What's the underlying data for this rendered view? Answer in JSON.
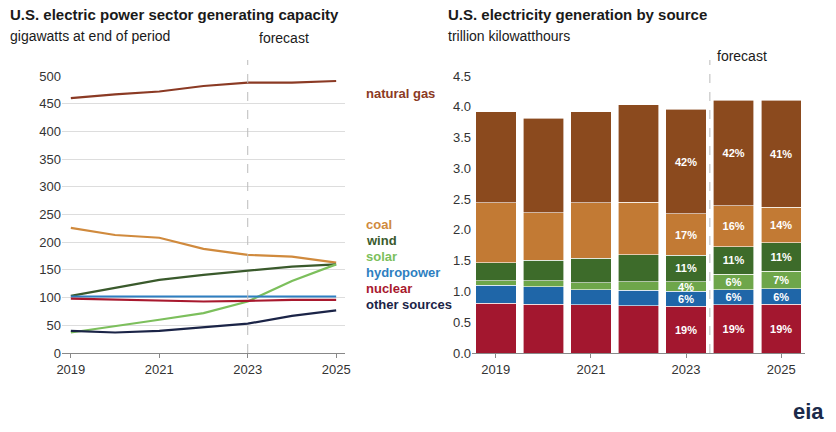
{
  "chart_data": [
    {
      "type": "line",
      "title": "U.S. electric power sector generating capacity",
      "subtitle": "gigawatts at end of period",
      "annotations": [
        {
          "text": "forecast",
          "x": 2023
        }
      ],
      "x": [
        2019,
        2020,
        2021,
        2022,
        2023,
        2024,
        2025
      ],
      "xlim": [
        2018.8,
        2025.2
      ],
      "xticks": [
        2019,
        2021,
        2023,
        2025
      ],
      "ylim": [
        0,
        500
      ],
      "yticks": [
        0,
        50,
        100,
        150,
        200,
        250,
        300,
        350,
        400,
        450,
        500
      ],
      "grid": true,
      "series": [
        {
          "name": "natural gas",
          "color": "#8b3a24",
          "values": [
            460,
            467,
            472,
            482,
            488,
            488,
            491
          ]
        },
        {
          "name": "coal",
          "color": "#d08a3d",
          "values": [
            226,
            213,
            208,
            188,
            177,
            174,
            163
          ]
        },
        {
          "name": "wind",
          "color": "#3a5a2c",
          "values": [
            103,
            118,
            132,
            141,
            148,
            156,
            160
          ]
        },
        {
          "name": "solar",
          "color": "#7cbf5c",
          "values": [
            37,
            48,
            60,
            72,
            93,
            130,
            160
          ]
        },
        {
          "name": "hydropower",
          "color": "#2e7fc1",
          "values": [
            102,
            102,
            102,
            102,
            102,
            102,
            102
          ]
        },
        {
          "name": "nuclear",
          "color": "#a8192e",
          "values": [
            98,
            96,
            95,
            93,
            94,
            96,
            96
          ]
        },
        {
          "name": "other sources",
          "color": "#1b2447",
          "values": [
            40,
            37,
            40,
            47,
            53,
            67,
            77
          ]
        }
      ]
    },
    {
      "type": "bar",
      "title": "U.S. electricity generation by source",
      "subtitle": "trillion kilowatthours",
      "annotations": [
        {
          "text": "forecast",
          "x": 4.5
        },
        {
          "text": "eia"
        }
      ],
      "categories": [
        "2019",
        null,
        "2021",
        null,
        "2023",
        null,
        "2025"
      ],
      "stacked": true,
      "grid": false,
      "ylim": [
        0,
        4.5
      ],
      "yticks": [
        {
          "value": 0,
          "label": "0.0"
        },
        0.5,
        {
          "value": 1,
          "label": "1.0"
        },
        1.5,
        {
          "value": 2,
          "label": "2.0"
        },
        2.5,
        {
          "value": 3,
          "label": "3.0"
        },
        3.5,
        {
          "value": 4,
          "label": "4.0"
        },
        4.5
      ],
      "series": [
        {
          "color": "#a3172f",
          "values": [
            0.81,
            0.79,
            0.78,
            0.77,
            0.76,
            0.78,
            0.79
          ],
          "share_labels": [
            null,
            null,
            null,
            null,
            "19%",
            "19%",
            "19%"
          ]
        },
        {
          "color": "#1f66a8",
          "values": [
            0.29,
            0.29,
            0.25,
            0.25,
            0.24,
            0.25,
            0.25
          ],
          "share_labels": [
            null,
            null,
            null,
            null,
            "6%",
            "6%",
            "6%"
          ]
        },
        {
          "color": "#6ea64a",
          "values": [
            0.07,
            0.09,
            0.11,
            0.14,
            0.16,
            0.25,
            0.29
          ],
          "share_labels": [
            null,
            null,
            null,
            null,
            "4%",
            "6%",
            "7%"
          ]
        },
        {
          "color": "#3d6b2a",
          "values": [
            0.3,
            0.34,
            0.4,
            0.44,
            0.43,
            0.45,
            0.46
          ],
          "share_labels": [
            null,
            null,
            null,
            null,
            "11%",
            "11%",
            "11%"
          ]
        },
        {
          "color": "#c27a34",
          "values": [
            0.97,
            0.77,
            0.9,
            0.85,
            0.67,
            0.66,
            0.58
          ],
          "share_labels": [
            null,
            null,
            null,
            null,
            "17%",
            "16%",
            "14%"
          ]
        },
        {
          "color": "#8b4a1e",
          "values": [
            1.48,
            1.53,
            1.48,
            1.58,
            1.7,
            1.72,
            1.74
          ],
          "share_labels": [
            null,
            null,
            null,
            null,
            "42%",
            "42%",
            "41%"
          ]
        }
      ]
    }
  ]
}
